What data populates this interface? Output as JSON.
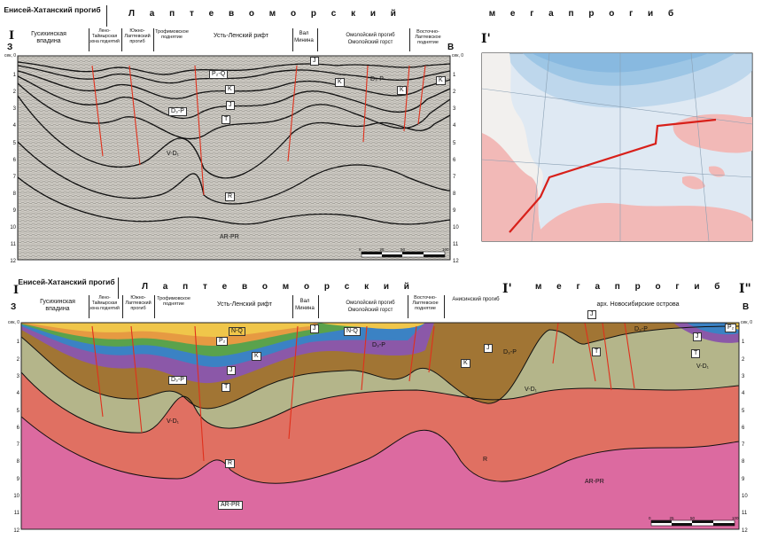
{
  "top_section": {
    "left_tectonic_unit": "Енисей-Хатанский прогиб",
    "megatrough_spaced": "Л а п т е в о м о р с к и й          м е г а п р о г и б",
    "units": [
      "Гусихинская впадина",
      "Лено-Таймырская зона поднятий",
      "Южно-Лаптевский прогиб",
      "Трофимовское поднятие",
      "Усть-Ленский рифт",
      "Вал Минина",
      "Омолойский прогиб Омолойский горст",
      "Восточно-Лаптевское поднятие"
    ],
    "profile_start_marker": "I",
    "west_label": "З",
    "east_label": "В",
    "depth_unit": "сек, 0",
    "depth_ticks": [
      "1",
      "2",
      "3",
      "4",
      "5",
      "6",
      "7",
      "8",
      "9",
      "10",
      "11",
      "12"
    ],
    "scale_ticks": [
      "0",
      "25",
      "50",
      "100"
    ],
    "formation_labels": [
      "P₂-Q",
      "K",
      "J",
      "D₃-P",
      "T",
      "V-D₁",
      "R",
      "AR-PR",
      "J",
      "K",
      "D₃-P",
      "K",
      "K"
    ]
  },
  "map_inset": {
    "label": "I'"
  },
  "bottom_section": {
    "left_tectonic_unit": "Енисей-Хатанский прогиб",
    "megatrough_left": "Л а п т е в о м о р с к и й",
    "megatrough_right": "м е г а п р о г и б",
    "units": [
      "Гусихинская впадина",
      "Лено-Таймырская зона поднятий",
      "Южно-Лаптевский прогиб",
      "Трофимовское поднятие",
      "Усть-Ленский рифт",
      "Вал Минина",
      "Омолойский прогиб Омолойский горст",
      "Восточно-Лаптевское поднятие",
      "Анисинский прогиб"
    ],
    "archipelago": "арх. Новосибирские острова",
    "profile_start_marker": "I",
    "profile_mid_marker": "I'",
    "profile_end_marker": "I\"",
    "west_label": "З",
    "east_label": "В",
    "depth_unit": "сек, 0",
    "depth_ticks": [
      "1",
      "2",
      "3",
      "4",
      "5",
      "6",
      "7",
      "8",
      "9",
      "10",
      "11",
      "12"
    ],
    "scale_ticks": [
      "0",
      "25",
      "50",
      "100"
    ],
    "formation_labels": [
      "N-Q",
      "P₂",
      "K",
      "J",
      "D₃-P",
      "T",
      "V-D₁",
      "R",
      "AR-PR",
      "N-Q",
      "J",
      "D₃-P",
      "K",
      "J",
      "D₃-P",
      "V-D₁",
      "R",
      "AR-PR",
      "J",
      "T",
      "D₃-P",
      "J",
      "T",
      "V-D₁",
      "P₂"
    ]
  }
}
